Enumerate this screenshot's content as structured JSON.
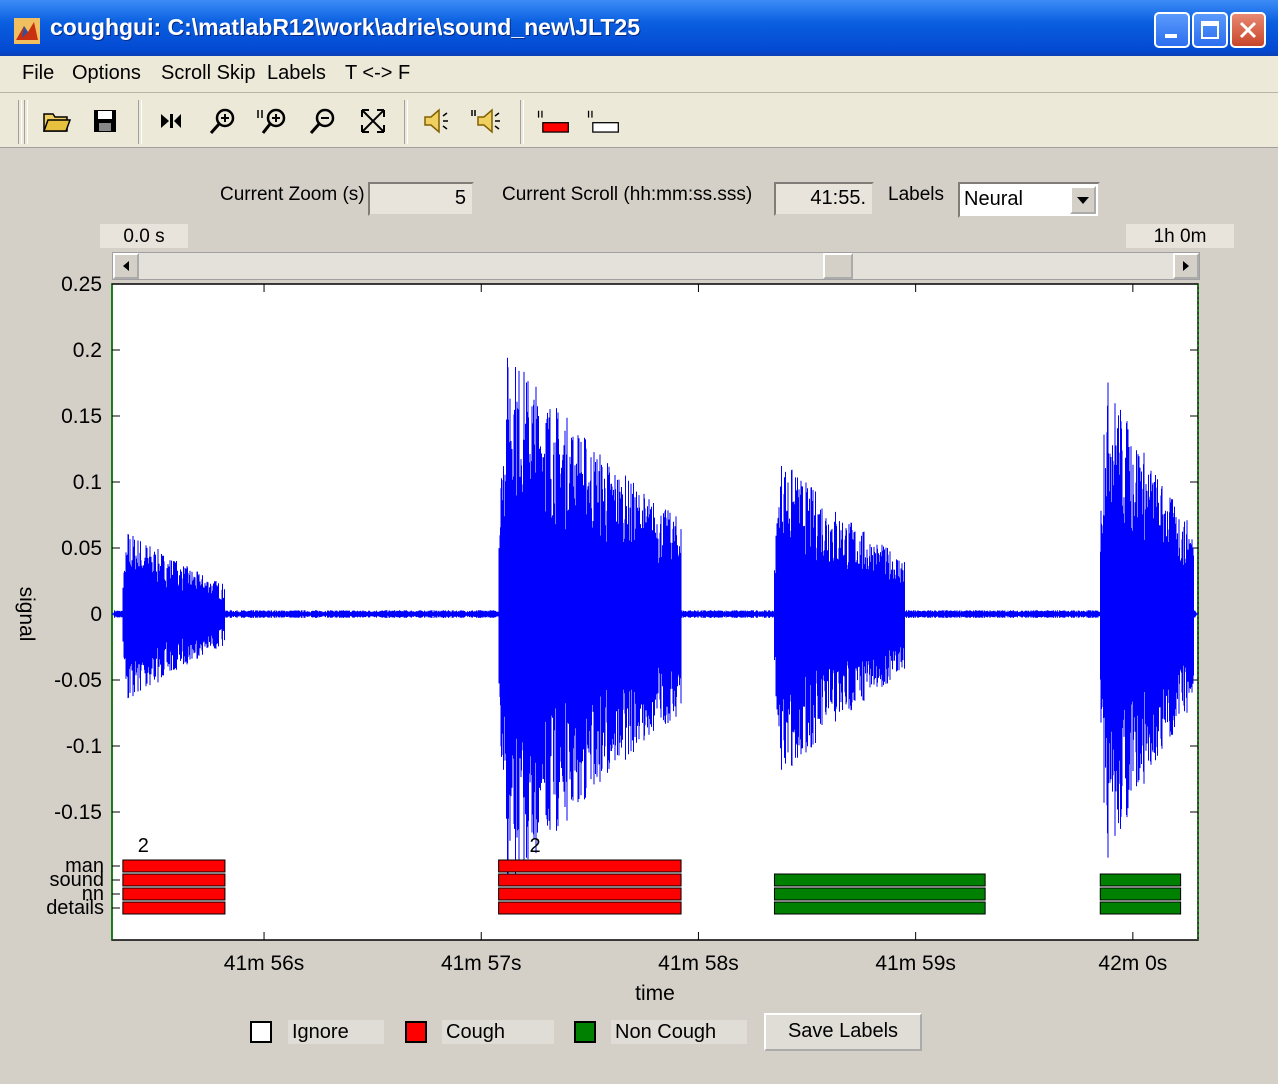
{
  "window": {
    "title": "coughgui: C:\\matlabR12\\work\\adrie\\sound_new\\JLT25"
  },
  "menu": [
    "File",
    "Options",
    "Scroll Skip",
    "Labels",
    "T <-> F"
  ],
  "toolbar_icons": [
    "open-folder-icon",
    "save-disk-icon",
    "play-pause-icon",
    "zoom-in-icon",
    "zoom-in-x-icon",
    "zoom-out-icon",
    "fit-view-icon",
    "speaker-icon",
    "speaker-loud-icon",
    "label-cough-icon",
    "label-blank-icon"
  ],
  "controls": {
    "zoom_label": "Current Zoom (s)",
    "zoom_value": "5",
    "scroll_label": "Current Scroll (hh:mm:ss.sss)",
    "scroll_value": "41:55.",
    "labels_label": "Labels",
    "labels_value": "Neural",
    "range_start": "0.0 s",
    "range_end": "1h 0m",
    "slider_position": 0.68
  },
  "colors": {
    "signal": "#0000ff",
    "cough": "#ff0000",
    "non_cough": "#008000",
    "ignore": "#ffffff"
  },
  "chart_data": {
    "type": "line",
    "xlabel": "time",
    "ylabel": "signal",
    "ylim": [
      -0.25,
      0.25
    ],
    "yticks": [
      "0.25",
      "0.2",
      "0.15",
      "0.1",
      "0.05",
      "0",
      "-0.05",
      "-0.1",
      "-0.15"
    ],
    "xticks": [
      "41m 56s",
      "41m 57s",
      "41m 58s",
      "41m 59s",
      "42m 0s"
    ],
    "xrange_s": [
      2515.3,
      2520.3
    ],
    "xtick_values_s": [
      2516,
      2517,
      2518,
      2519,
      2520
    ],
    "label_rows": [
      "man",
      "sound",
      "nn",
      "details"
    ],
    "bursts": [
      {
        "t0": 2515.35,
        "t1": 2515.82,
        "amp": 0.07
      },
      {
        "t0": 2517.08,
        "t1": 2517.92,
        "amp": 0.22
      },
      {
        "t0": 2518.35,
        "t1": 2518.95,
        "amp": 0.13
      },
      {
        "t0": 2519.85,
        "t1": 2520.28,
        "amp": 0.2
      }
    ],
    "segments": [
      {
        "class": "cough",
        "t0": 2515.35,
        "t1": 2515.82,
        "count_label": "2"
      },
      {
        "class": "cough",
        "t0": 2517.08,
        "t1": 2517.92,
        "count_label": "2"
      },
      {
        "class": "non_cough",
        "t0": 2518.35,
        "t1": 2519.32
      },
      {
        "class": "non_cough",
        "t0": 2519.85,
        "t1": 2520.22
      }
    ]
  },
  "legend": {
    "ignore": "Ignore",
    "cough": "Cough",
    "non_cough": "Non Cough"
  },
  "save_button": "Save Labels"
}
